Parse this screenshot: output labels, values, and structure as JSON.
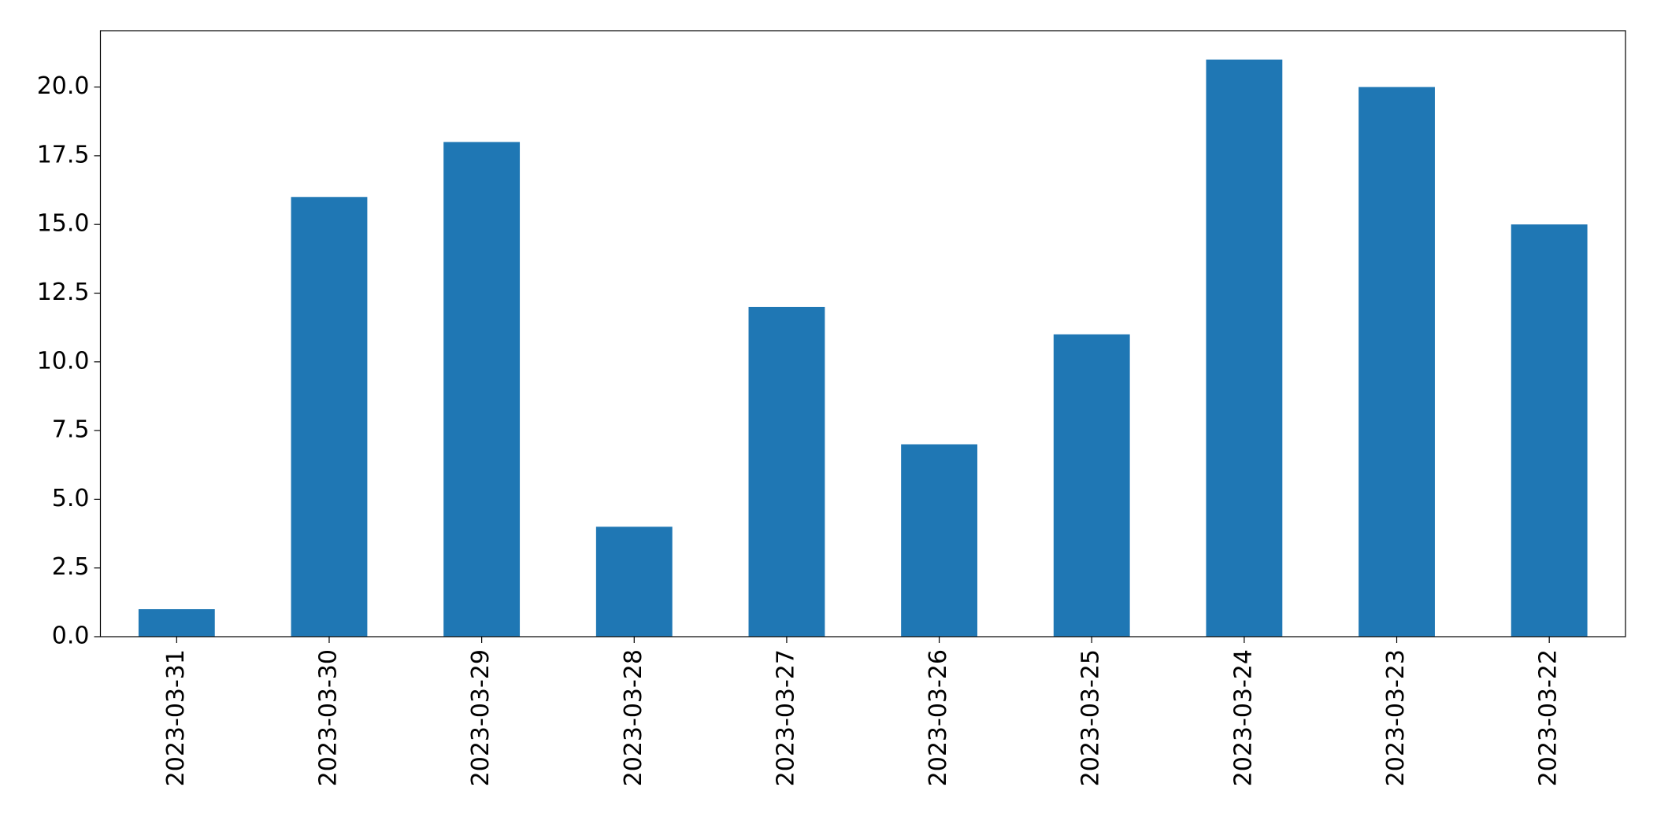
{
  "chart_data": {
    "type": "bar",
    "categories": [
      "2023-03-31",
      "2023-03-30",
      "2023-03-29",
      "2023-03-28",
      "2023-03-27",
      "2023-03-26",
      "2023-03-25",
      "2023-03-24",
      "2023-03-23",
      "2023-03-22"
    ],
    "values": [
      1,
      16,
      18,
      4,
      12,
      7,
      11,
      21,
      20,
      15
    ],
    "color": "#1f77b4",
    "ylim": [
      0,
      22.05
    ],
    "yticks": [
      {
        "value": 0,
        "label": "0.0"
      },
      2.5,
      {
        "value": 5,
        "label": "5.0"
      },
      7.5,
      {
        "value": 10,
        "label": "10.0"
      },
      12.5,
      {
        "value": 15,
        "label": "15.0"
      },
      17.5,
      {
        "value": 20,
        "label": "20.0"
      }
    ],
    "grid": false
  }
}
